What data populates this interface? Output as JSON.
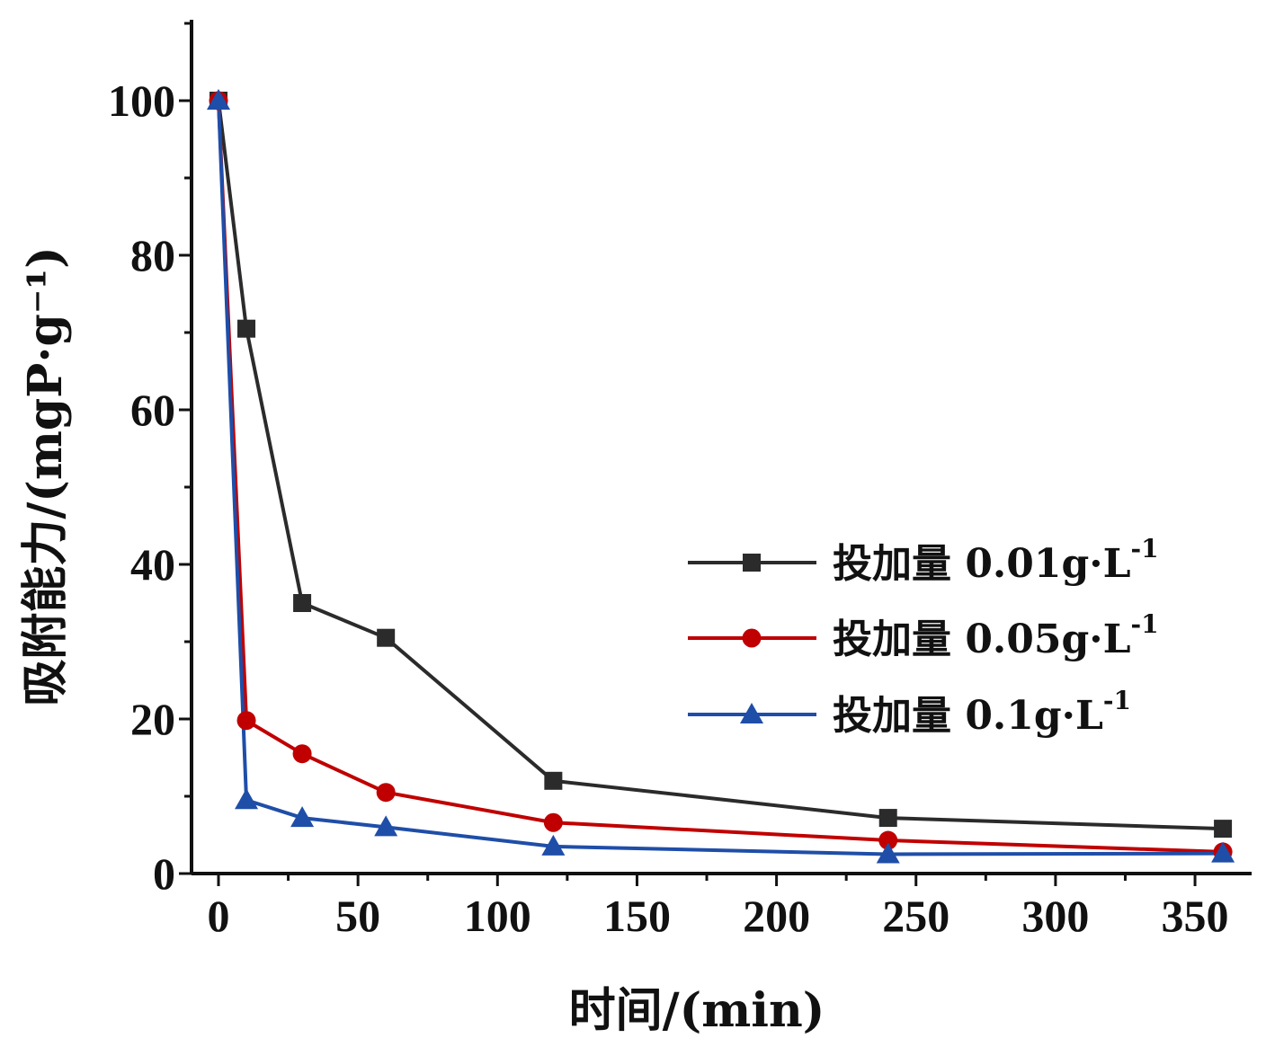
{
  "chart_data": {
    "type": "line",
    "title": "",
    "xlabel": "时间/(min)",
    "ylabel": "吸附能力/(mgP·g⁻¹)",
    "xlim": [
      -10,
      370
    ],
    "ylim": [
      0,
      110
    ],
    "xticks": [
      0,
      50,
      100,
      150,
      200,
      250,
      300,
      350
    ],
    "yticks": [
      0,
      20,
      40,
      60,
      80,
      100
    ],
    "legend_position": "right-middle",
    "grid": false,
    "x": [
      0,
      10,
      30,
      60,
      120,
      240,
      360
    ],
    "series": [
      {
        "name": "投加量 0.01g·L⁻¹",
        "label_main": "投加量 0.01g·L",
        "label_sup": "-1",
        "color": "#2b2b2b",
        "marker": "square",
        "values": [
          100,
          70.5,
          35,
          30.5,
          12,
          7.2,
          5.8
        ]
      },
      {
        "name": "投加量 0.05g·L⁻¹",
        "label_main": "投加量 0.05g·L",
        "label_sup": "-1",
        "color": "#c00000",
        "marker": "circle",
        "values": [
          100,
          19.8,
          15.5,
          10.5,
          6.6,
          4.3,
          2.8
        ]
      },
      {
        "name": "投加量 0.1g·L⁻¹",
        "label_main": "投加量 0.1g·L",
        "label_sup": "-1",
        "color": "#1f4ea8",
        "marker": "triangle",
        "values": [
          100,
          9.5,
          7.2,
          6.0,
          3.5,
          2.5,
          2.6
        ]
      }
    ]
  }
}
